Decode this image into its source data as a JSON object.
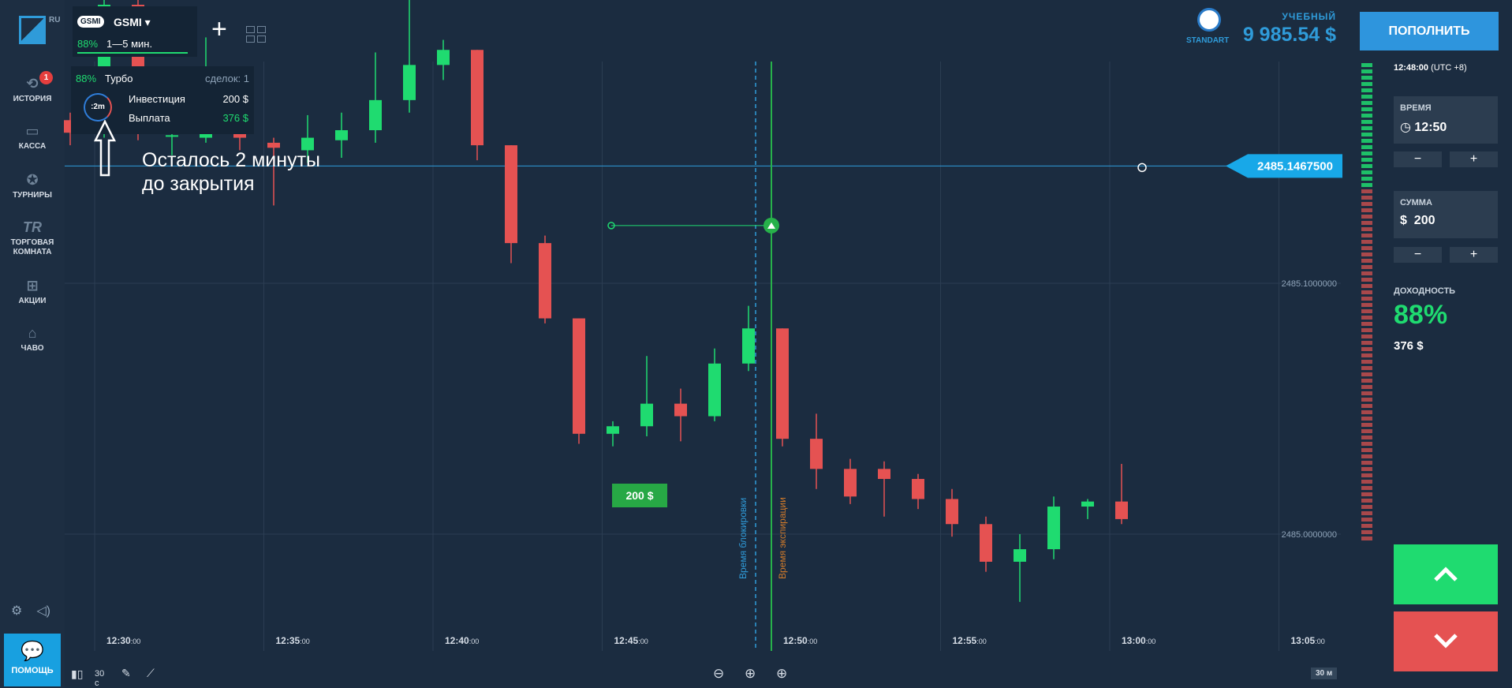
{
  "header": {
    "logo_region": "RU",
    "asset": {
      "chip": "GSMI",
      "name": "GSMI ▾",
      "payout_pct": "88%",
      "duration": "1—5 мин."
    },
    "account_kind": "УЧЕБНЫЙ",
    "account_type": "STANDART",
    "balance": "9 985.54 $",
    "deposit_label": "ПОПОЛНИТЬ"
  },
  "sidebar": {
    "items": [
      {
        "label": "ИСТОРИЯ",
        "icon": "history-icon",
        "badge": "1"
      },
      {
        "label": "КАССА",
        "icon": "wallet-icon"
      },
      {
        "label": "ТУРНИРЫ",
        "icon": "star-icon"
      },
      {
        "label": "ТОРГОВАЯ КОМНАТА",
        "line1": "ТОРГОВАЯ",
        "line2": "КОМНАТА",
        "icon": "tr-icon"
      },
      {
        "label": "АКЦИИ",
        "icon": "gift-icon"
      },
      {
        "label": "ЧАВО",
        "icon": "graduation-cap-icon"
      }
    ],
    "help_label": "ПОМОЩЬ"
  },
  "trade_card": {
    "pct": "88%",
    "mode": "Турбо",
    "deals": "сделок: 1",
    "timer": ":2m",
    "investment_label": "Инвестиция",
    "investment_value": "200 $",
    "payout_label": "Выплата",
    "payout_value": "376 $"
  },
  "annotation": {
    "line1": "Осталось 2 минуты",
    "line2": "до закрытия"
  },
  "right_panel": {
    "clock": "12:48:00",
    "tz": "(UTC +8)",
    "time_label": "ВРЕМЯ",
    "time_value": "12:50",
    "sum_label": "СУММА",
    "sum_currency": "$",
    "sum_value": "200",
    "minus": "−",
    "plus": "+",
    "yield_label": "ДОХОДНОСТЬ",
    "yield_value": "88%",
    "yield_payout": "376 $"
  },
  "chart_data": {
    "type": "candlestick",
    "x_ticks": [
      "12:30",
      "12:35",
      "12:40",
      "12:45",
      "12:50",
      "12:55",
      "13:00",
      "13:05"
    ],
    "x_tick_suffix": ":00",
    "y_ticks": [
      "2485.1000000",
      "2485.0000000"
    ],
    "y_tick_values": [
      2485.1,
      2485.0
    ],
    "current_price": "2485.1467500",
    "current_price_value": 2485.14675,
    "trade_amount": "200 $",
    "trade_entry_price": 2485.123,
    "lock_label": "Время блокировки",
    "expiry_label": "Время экспирации",
    "colors": {
      "up": "#1fdb70",
      "down": "#e55252",
      "price_line": "#2f9bd9",
      "expiry": "#27b14a"
    },
    "candles": [
      {
        "t": "12:29",
        "o": 2485.165,
        "c": 2485.16,
        "h": 2485.168,
        "l": 2485.155
      },
      {
        "t": "12:30",
        "o": 2485.162,
        "c": 2485.211,
        "h": 2485.22,
        "l": 2485.158
      },
      {
        "t": "12:31",
        "o": 2485.211,
        "c": 2485.163,
        "h": 2485.235,
        "l": 2485.157
      },
      {
        "t": "12:32",
        "o": 2485.159,
        "c": 2485.159,
        "h": 2485.166,
        "l": 2485.151
      },
      {
        "t": "12:33",
        "o": 2485.158,
        "c": 2485.167,
        "h": 2485.198,
        "l": 2485.156
      },
      {
        "t": "12:34",
        "o": 2485.168,
        "c": 2485.158,
        "h": 2485.172,
        "l": 2485.153
      },
      {
        "t": "12:35",
        "o": 2485.156,
        "c": 2485.154,
        "h": 2485.158,
        "l": 2485.131
      },
      {
        "t": "12:36",
        "o": 2485.153,
        "c": 2485.158,
        "h": 2485.167,
        "l": 2485.148
      },
      {
        "t": "12:37",
        "o": 2485.157,
        "c": 2485.161,
        "h": 2485.168,
        "l": 2485.15
      },
      {
        "t": "12:38",
        "o": 2485.161,
        "c": 2485.173,
        "h": 2485.192,
        "l": 2485.156
      },
      {
        "t": "12:39",
        "o": 2485.173,
        "c": 2485.187,
        "h": 2485.213,
        "l": 2485.168
      },
      {
        "t": "12:40",
        "o": 2485.187,
        "c": 2485.193,
        "h": 2485.197,
        "l": 2485.181
      },
      {
        "t": "12:41",
        "o": 2485.193,
        "c": 2485.155,
        "h": 2485.193,
        "l": 2485.149
      },
      {
        "t": "12:42",
        "o": 2485.155,
        "c": 2485.116,
        "h": 2485.155,
        "l": 2485.108
      },
      {
        "t": "12:43",
        "o": 2485.116,
        "c": 2485.086,
        "h": 2485.119,
        "l": 2485.084
      },
      {
        "t": "12:44",
        "o": 2485.086,
        "c": 2485.04,
        "h": 2485.086,
        "l": 2485.036
      },
      {
        "t": "12:45",
        "o": 2485.04,
        "c": 2485.043,
        "h": 2485.045,
        "l": 2485.035
      },
      {
        "t": "12:46",
        "o": 2485.043,
        "c": 2485.052,
        "h": 2485.071,
        "l": 2485.039
      },
      {
        "t": "12:47",
        "o": 2485.052,
        "c": 2485.047,
        "h": 2485.058,
        "l": 2485.037
      },
      {
        "t": "12:48",
        "o": 2485.047,
        "c": 2485.068,
        "h": 2485.074,
        "l": 2485.045
      },
      {
        "t": "12:49",
        "o": 2485.068,
        "c": 2485.082,
        "h": 2485.091,
        "l": 2485.065
      },
      {
        "t": "12:50",
        "o": 2485.082,
        "c": 2485.038,
        "h": 2485.082,
        "l": 2485.035
      },
      {
        "t": "12:51",
        "o": 2485.038,
        "c": 2485.026,
        "h": 2485.048,
        "l": 2485.018
      },
      {
        "t": "12:52",
        "o": 2485.026,
        "c": 2485.015,
        "h": 2485.03,
        "l": 2485.012
      },
      {
        "t": "12:53",
        "o": 2485.026,
        "c": 2485.022,
        "h": 2485.029,
        "l": 2485.007
      },
      {
        "t": "12:54",
        "o": 2485.022,
        "c": 2485.014,
        "h": 2485.024,
        "l": 2485.01
      },
      {
        "t": "12:55",
        "o": 2485.014,
        "c": 2485.004,
        "h": 2485.018,
        "l": 2484.999
      },
      {
        "t": "12:56",
        "o": 2485.004,
        "c": 2484.989,
        "h": 2485.007,
        "l": 2484.985
      },
      {
        "t": "12:57",
        "o": 2484.989,
        "c": 2484.994,
        "h": 2485.0,
        "l": 2484.973
      },
      {
        "t": "12:58",
        "o": 2484.994,
        "c": 2485.011,
        "h": 2485.015,
        "l": 2484.99
      },
      {
        "t": "12:59",
        "o": 2485.011,
        "c": 2485.013,
        "h": 2485.014,
        "l": 2485.006
      },
      {
        "t": "13:00",
        "o": 2485.013,
        "c": 2485.006,
        "h": 2485.028,
        "l": 2485.004
      }
    ],
    "bottom_bar": {
      "interval": "30 с",
      "timeframe": "30 м"
    }
  }
}
